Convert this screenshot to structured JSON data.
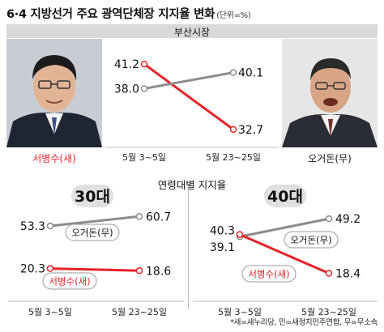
{
  "header": {
    "title": "6·4 지방선거 주요 광역단체장 지지율 변화",
    "unit": "(단위=%)"
  },
  "busan": {
    "label": "부산시장",
    "left_candidate": "서병수(새)",
    "right_candidate": "오거돈(무)"
  },
  "age_section": {
    "title": "연령대별 지지율",
    "group30": "30대",
    "group40": "40대",
    "label_oh": "오거돈(무)",
    "label_seo": "서병수(새)"
  },
  "footnote": "*새=새누리당, 민=새정치민주연합, 무=무소속",
  "colors": {
    "seo": "#e52229",
    "oh": "#8c8c8c"
  },
  "chart_data": [
    {
      "type": "line",
      "title": "부산시장",
      "categories": [
        "5월 3~5일",
        "5월 23~25일"
      ],
      "series": [
        {
          "name": "서병수(새)",
          "values": [
            41.2,
            32.7
          ]
        },
        {
          "name": "오거돈(무)",
          "values": [
            38.0,
            40.1
          ]
        }
      ],
      "ylim": [
        31,
        43
      ]
    },
    {
      "type": "line",
      "title": "30대",
      "categories": [
        "5월 3~5일",
        "5월 23~25일"
      ],
      "series": [
        {
          "name": "오거돈(무)",
          "values": [
            53.3,
            60.7
          ]
        },
        {
          "name": "서병수(새)",
          "values": [
            20.3,
            18.6
          ]
        }
      ]
    },
    {
      "type": "line",
      "title": "40대",
      "categories": [
        "5월 3~5일",
        "5월 23~25일"
      ],
      "series": [
        {
          "name": "오거돈(무)",
          "values": [
            39.1,
            49.2
          ]
        },
        {
          "name": "서병수(새)",
          "values": [
            40.3,
            18.4
          ]
        }
      ],
      "ylim": [
        15,
        52
      ]
    }
  ]
}
